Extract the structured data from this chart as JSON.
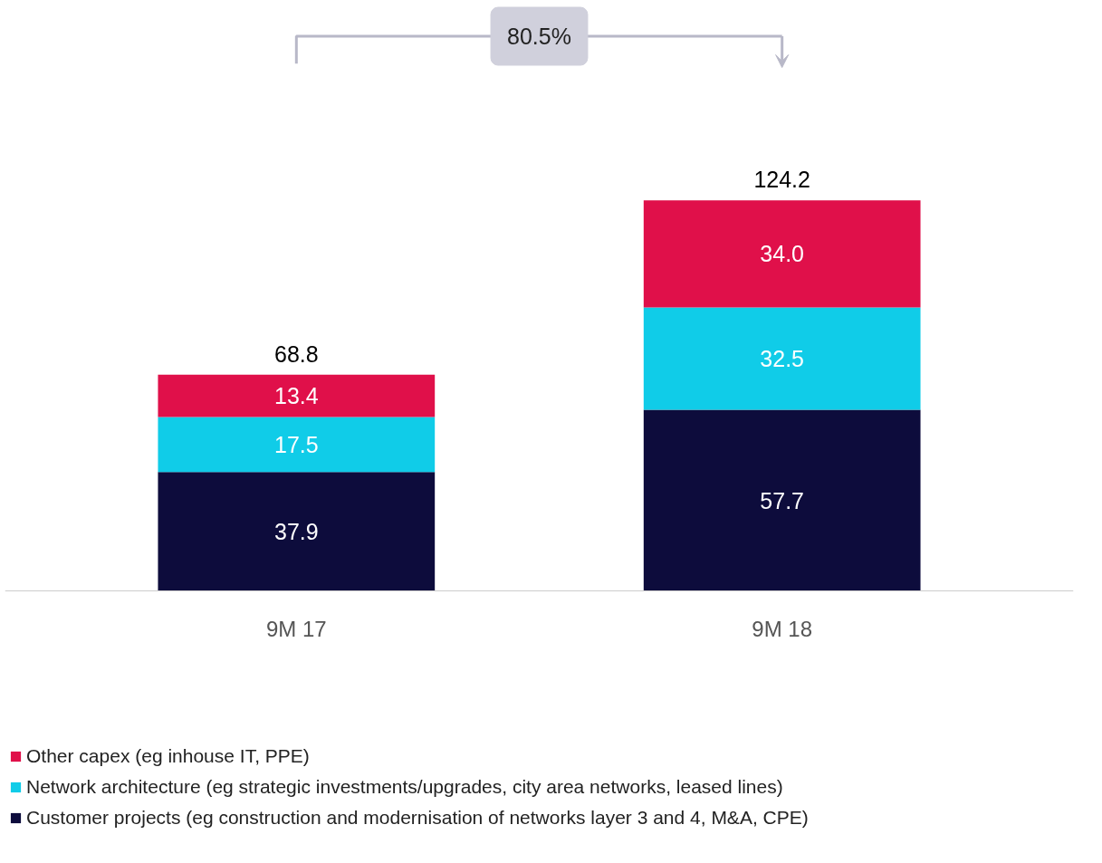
{
  "chart_data": {
    "type": "bar",
    "stacked": true,
    "categories": [
      "9M 17",
      "9M 18"
    ],
    "series": [
      {
        "name": "Customer projects (eg construction and modernisation of networks layer 3 and 4, M&A, CPE)",
        "color": "#0d0c3c",
        "values": [
          37.9,
          57.7
        ],
        "value_labels": [
          "37.9",
          "57.7"
        ]
      },
      {
        "name": "Network architecture (eg strategic investments/upgrades, city area networks, leased lines)",
        "color": "#10cce8",
        "values": [
          17.5,
          32.5
        ],
        "value_labels": [
          "17.5",
          "32.5"
        ]
      },
      {
        "name": "Other capex (eg inhouse IT, PPE)",
        "color": "#e0104a",
        "values": [
          13.4,
          34.0
        ],
        "value_labels": [
          "13.4",
          "34.0"
        ]
      }
    ],
    "totals": [
      "68.8",
      "124.2"
    ],
    "annotations": [
      "80.5%"
    ],
    "legend": "bottom",
    "grid": false
  }
}
